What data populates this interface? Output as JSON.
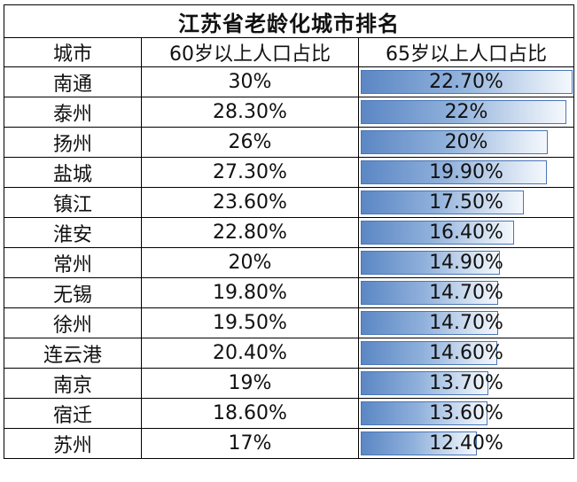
{
  "title": "江苏省老龄化城市排名",
  "columns": [
    "城市",
    "60岁以上人口占比",
    "65岁以上人口占比"
  ],
  "rows": [
    {
      "city": "南通",
      "p60": "30%",
      "p65": "22.70%",
      "p65_value": 22.7
    },
    {
      "city": "泰州",
      "p60": "28.30%",
      "p65": "22%",
      "p65_value": 22.0
    },
    {
      "city": "扬州",
      "p60": "26%",
      "p65": "20%",
      "p65_value": 20.0
    },
    {
      "city": "盐城",
      "p60": "27.30%",
      "p65": "19.90%",
      "p65_value": 19.9
    },
    {
      "city": "镇江",
      "p60": "23.60%",
      "p65": "17.50%",
      "p65_value": 17.5
    },
    {
      "city": "淮安",
      "p60": "22.80%",
      "p65": "16.40%",
      "p65_value": 16.4
    },
    {
      "city": "常州",
      "p60": "20%",
      "p65": "14.90%",
      "p65_value": 14.9
    },
    {
      "city": "无锡",
      "p60": "19.80%",
      "p65": "14.70%",
      "p65_value": 14.7
    },
    {
      "city": "徐州",
      "p60": "19.50%",
      "p65": "14.70%",
      "p65_value": 14.7
    },
    {
      "city": "连云港",
      "p60": "20.40%",
      "p65": "14.60%",
      "p65_value": 14.6
    },
    {
      "city": "南京",
      "p60": "19%",
      "p65": "13.70%",
      "p65_value": 13.7
    },
    {
      "city": "宿迁",
      "p60": "18.60%",
      "p65": "13.60%",
      "p65_value": 13.6
    },
    {
      "city": "苏州",
      "p60": "17%",
      "p65": "12.40%",
      "p65_value": 12.4
    }
  ],
  "bar_color": "#5b87c4"
}
